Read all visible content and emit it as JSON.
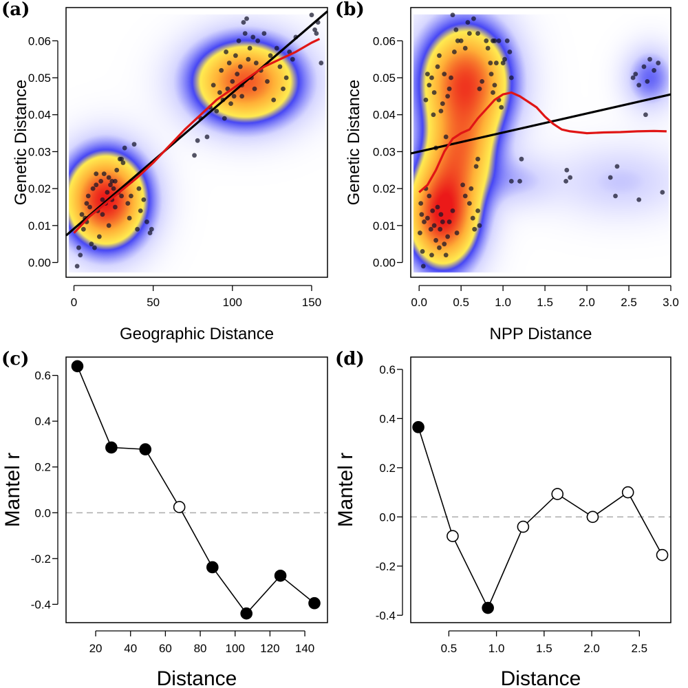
{
  "chart_data": [
    {
      "panel": "(a)",
      "type": "scatter",
      "xlabel": "Geographic Distance",
      "ylabel": "Genetic Distance",
      "xlim": [
        -5,
        160
      ],
      "ylim": [
        -0.004,
        0.069
      ],
      "xticks": [
        0,
        50,
        100,
        150
      ],
      "yticks": [
        0.0,
        0.01,
        0.02,
        0.03,
        0.04,
        0.05,
        0.06
      ],
      "yticklabels": [
        "0.00",
        "0.01",
        "0.02",
        "0.03",
        "0.04",
        "0.05",
        "0.06"
      ],
      "xticklabels": [
        "0",
        "50",
        "100",
        "150"
      ],
      "density_background": true,
      "density_clusters": [
        {
          "x": 20,
          "y": 0.017,
          "sx": 18,
          "sy": 0.009,
          "w": 1.0
        },
        {
          "x": 108,
          "y": 0.049,
          "sx": 24,
          "sy": 0.008,
          "w": 0.85
        }
      ],
      "points": [
        [
          2,
          -0.001
        ],
        [
          3,
          0.004
        ],
        [
          4,
          0.002
        ],
        [
          5,
          0.013
        ],
        [
          6,
          0.009
        ],
        [
          7,
          0.012
        ],
        [
          8,
          0.016
        ],
        [
          9,
          0.018
        ],
        [
          10,
          0.015
        ],
        [
          11,
          0.005
        ],
        [
          12,
          0.02
        ],
        [
          13,
          0.004
        ],
        [
          14,
          0.021
        ],
        [
          15,
          0.014
        ],
        [
          16,
          0.007
        ],
        [
          17,
          0.022
        ],
        [
          18,
          0.017
        ],
        [
          19,
          0.024
        ],
        [
          20,
          0.016
        ],
        [
          21,
          0.019
        ],
        [
          22,
          0.023
        ],
        [
          23,
          0.021
        ],
        [
          24,
          0.017
        ],
        [
          25,
          0.02
        ],
        [
          26,
          0.022
        ],
        [
          27,
          0.025
        ],
        [
          28,
          0.019
        ],
        [
          29,
          0.028
        ],
        [
          30,
          0.018
        ],
        [
          31,
          0.027
        ],
        [
          32,
          0.031
        ],
        [
          34,
          0.016
        ],
        [
          35,
          0.012
        ],
        [
          36,
          0.022
        ],
        [
          38,
          0.032
        ],
        [
          40,
          0.009
        ],
        [
          41,
          0.02
        ],
        [
          42,
          0.014
        ],
        [
          44,
          0.017
        ],
        [
          46,
          0.011
        ],
        [
          48,
          0.008
        ],
        [
          49,
          0.009
        ],
        [
          18,
          0.013
        ],
        [
          22,
          0.01
        ],
        [
          26,
          0.015
        ],
        [
          30,
          0.028
        ],
        [
          14,
          0.024
        ],
        [
          8,
          0.011
        ],
        [
          36,
          0.018
        ],
        [
          24,
          0.022
        ],
        [
          76,
          0.029
        ],
        [
          78,
          0.033
        ],
        [
          80,
          0.039
        ],
        [
          84,
          0.034
        ],
        [
          86,
          0.042
        ],
        [
          88,
          0.048
        ],
        [
          90,
          0.041
        ],
        [
          92,
          0.046
        ],
        [
          93,
          0.052
        ],
        [
          94,
          0.044
        ],
        [
          95,
          0.039
        ],
        [
          96,
          0.057
        ],
        [
          97,
          0.047
        ],
        [
          98,
          0.054
        ],
        [
          99,
          0.043
        ],
        [
          100,
          0.049
        ],
        [
          101,
          0.045
        ],
        [
          102,
          0.056
        ],
        [
          103,
          0.051
        ],
        [
          104,
          0.06
        ],
        [
          105,
          0.053
        ],
        [
          106,
          0.048
        ],
        [
          107,
          0.065
        ],
        [
          108,
          0.062
        ],
        [
          109,
          0.066
        ],
        [
          110,
          0.055
        ],
        [
          111,
          0.058
        ],
        [
          112,
          0.05
        ],
        [
          113,
          0.061
        ],
        [
          114,
          0.047
        ],
        [
          115,
          0.054
        ],
        [
          116,
          0.06
        ],
        [
          118,
          0.052
        ],
        [
          120,
          0.062
        ],
        [
          122,
          0.049
        ],
        [
          124,
          0.056
        ],
        [
          126,
          0.044
        ],
        [
          128,
          0.058
        ],
        [
          130,
          0.053
        ],
        [
          132,
          0.047
        ],
        [
          134,
          0.05
        ],
        [
          136,
          0.057
        ],
        [
          138,
          0.055
        ],
        [
          140,
          0.061
        ],
        [
          150,
          0.067
        ],
        [
          152,
          0.063
        ],
        [
          153,
          0.062
        ],
        [
          154,
          0.065
        ],
        [
          156,
          0.054
        ],
        [
          106,
          0.045
        ]
      ],
      "regression_line": {
        "x": [
          -5,
          160
        ],
        "y": [
          0.0073,
          0.068
        ],
        "color": "#000000"
      },
      "loess_curve": {
        "x": [
          0,
          10,
          20,
          30,
          40,
          50,
          60,
          70,
          80,
          90,
          100,
          110,
          120,
          130,
          140,
          150,
          155
        ],
        "y": [
          0.008,
          0.0125,
          0.016,
          0.0195,
          0.023,
          0.027,
          0.0315,
          0.036,
          0.04,
          0.044,
          0.047,
          0.05,
          0.053,
          0.055,
          0.057,
          0.0595,
          0.0605
        ],
        "color": "#e01515"
      }
    },
    {
      "panel": "(b)",
      "type": "scatter",
      "xlabel": "NPP Distance",
      "ylabel": "Genetic Distance",
      "xlim": [
        -0.1,
        3.0
      ],
      "ylim": [
        -0.004,
        0.069
      ],
      "xticks": [
        0.0,
        0.5,
        1.0,
        1.5,
        2.0,
        2.5,
        3.0
      ],
      "xticklabels": [
        "0.0",
        "0.5",
        "1.0",
        "1.5",
        "2.0",
        "2.5",
        "3.0"
      ],
      "yticks": [
        0.0,
        0.01,
        0.02,
        0.03,
        0.04,
        0.05,
        0.06
      ],
      "yticklabels": [
        "0.00",
        "0.01",
        "0.02",
        "0.03",
        "0.04",
        "0.05",
        "0.06"
      ],
      "density_background": true,
      "density_clusters": [
        {
          "x": 0.28,
          "y": 0.013,
          "sx": 0.3,
          "sy": 0.01,
          "w": 1.0
        },
        {
          "x": 0.55,
          "y": 0.049,
          "sx": 0.38,
          "sy": 0.011,
          "w": 0.9
        },
        {
          "x": 0.5,
          "y": 0.03,
          "sx": 0.28,
          "sy": 0.008,
          "w": 0.45
        },
        {
          "x": 2.75,
          "y": 0.05,
          "sx": 0.22,
          "sy": 0.006,
          "w": 0.28
        },
        {
          "x": 2.4,
          "y": 0.022,
          "sx": 0.55,
          "sy": 0.007,
          "w": 0.16
        },
        {
          "x": 1.2,
          "y": 0.022,
          "sx": 0.3,
          "sy": 0.005,
          "w": 0.14
        }
      ],
      "points": [
        [
          0.01,
          0.008
        ],
        [
          0.02,
          0.016
        ],
        [
          0.03,
          0.013
        ],
        [
          0.04,
          0.003
        ],
        [
          0.05,
          -0.001
        ],
        [
          0.06,
          0.011
        ],
        [
          0.08,
          0.02
        ],
        [
          0.1,
          0.012
        ],
        [
          0.12,
          0.018
        ],
        [
          0.14,
          0.009
        ],
        [
          0.15,
          0.002
        ],
        [
          0.16,
          0.014
        ],
        [
          0.18,
          0.01
        ],
        [
          0.2,
          0.006
        ],
        [
          0.22,
          0.015
        ],
        [
          0.24,
          0.004
        ],
        [
          0.25,
          0.009
        ],
        [
          0.26,
          0.013
        ],
        [
          0.28,
          0.011
        ],
        [
          0.3,
          0.005
        ],
        [
          0.32,
          0.002
        ],
        [
          0.34,
          0.007
        ],
        [
          0.36,
          0.011
        ],
        [
          0.4,
          0.014
        ],
        [
          0.45,
          0.008
        ],
        [
          0.52,
          0.021
        ],
        [
          0.55,
          0.018
        ],
        [
          0.6,
          0.016
        ],
        [
          0.62,
          0.02
        ],
        [
          0.64,
          0.012
        ],
        [
          0.66,
          0.009
        ],
        [
          0.7,
          0.014
        ],
        [
          0.72,
          0.01
        ],
        [
          0.68,
          0.026
        ],
        [
          0.7,
          0.028
        ],
        [
          0.08,
          0.044
        ],
        [
          0.1,
          0.051
        ],
        [
          0.12,
          0.048
        ],
        [
          0.15,
          0.05
        ],
        [
          0.17,
          0.04
        ],
        [
          0.18,
          0.046
        ],
        [
          0.2,
          0.031
        ],
        [
          0.22,
          0.053
        ],
        [
          0.24,
          0.056
        ],
        [
          0.26,
          0.041
        ],
        [
          0.28,
          0.043
        ],
        [
          0.3,
          0.051
        ],
        [
          0.32,
          0.034
        ],
        [
          0.34,
          0.045
        ],
        [
          0.36,
          0.047
        ],
        [
          0.38,
          0.05
        ],
        [
          0.4,
          0.067
        ],
        [
          0.42,
          0.057
        ],
        [
          0.44,
          0.063
        ],
        [
          0.46,
          0.06
        ],
        [
          0.5,
          0.06
        ],
        [
          0.55,
          0.058
        ],
        [
          0.58,
          0.065
        ],
        [
          0.6,
          0.062
        ],
        [
          0.65,
          0.066
        ],
        [
          0.7,
          0.062
        ],
        [
          0.72,
          0.047
        ],
        [
          0.75,
          0.049
        ],
        [
          0.8,
          0.06
        ],
        [
          0.82,
          0.058
        ],
        [
          0.85,
          0.054
        ],
        [
          0.88,
          0.06
        ],
        [
          0.9,
          0.06
        ],
        [
          0.92,
          0.054
        ],
        [
          0.95,
          0.06
        ],
        [
          1.0,
          0.054
        ],
        [
          1.02,
          0.055
        ],
        [
          1.05,
          0.06
        ],
        [
          1.08,
          0.057
        ],
        [
          0.86,
          0.051
        ],
        [
          0.88,
          0.046
        ],
        [
          0.9,
          0.048
        ],
        [
          0.95,
          0.044
        ],
        [
          1.1,
          0.05
        ],
        [
          0.98,
          0.042
        ],
        [
          1.1,
          0.022
        ],
        [
          1.2,
          0.022
        ],
        [
          1.22,
          0.028
        ],
        [
          1.75,
          0.022
        ],
        [
          1.76,
          0.025
        ],
        [
          1.8,
          0.023
        ],
        [
          2.28,
          0.023
        ],
        [
          2.34,
          0.018
        ],
        [
          2.36,
          0.026
        ],
        [
          2.62,
          0.017
        ],
        [
          2.55,
          0.05
        ],
        [
          2.62,
          0.048
        ],
        [
          2.68,
          0.053
        ],
        [
          2.72,
          0.049
        ],
        [
          2.75,
          0.055
        ],
        [
          2.8,
          0.052
        ],
        [
          2.85,
          0.054
        ],
        [
          2.9,
          0.019
        ],
        [
          2.7,
          0.04
        ],
        [
          2.58,
          0.051
        ]
      ],
      "regression_line": {
        "x": [
          -0.1,
          3.0
        ],
        "y": [
          0.0295,
          0.0455
        ],
        "color": "#000000"
      },
      "loess_curve": {
        "x": [
          0.0,
          0.1,
          0.2,
          0.3,
          0.4,
          0.5,
          0.6,
          0.7,
          0.8,
          0.9,
          1.0,
          1.1,
          1.2,
          1.3,
          1.4,
          1.5,
          1.6,
          1.7,
          1.8,
          2.0,
          2.2,
          2.4,
          2.6,
          2.8,
          2.95
        ],
        "y": [
          0.019,
          0.021,
          0.025,
          0.03,
          0.0335,
          0.035,
          0.036,
          0.039,
          0.0415,
          0.044,
          0.0455,
          0.046,
          0.045,
          0.0435,
          0.042,
          0.0395,
          0.0375,
          0.036,
          0.0355,
          0.035,
          0.0352,
          0.0353,
          0.0355,
          0.0356,
          0.0355
        ],
        "color": "#e01515"
      }
    },
    {
      "panel": "(c)",
      "type": "line",
      "xlabel": "Distance",
      "ylabel": "Mantel r",
      "xlim": [
        3,
        153
      ],
      "ylim": [
        -0.48,
        0.68
      ],
      "xticks": [
        20,
        40,
        60,
        80,
        100,
        120,
        140
      ],
      "xticklabels": [
        "20",
        "40",
        "60",
        "80",
        "100",
        "120",
        "140"
      ],
      "yticks": [
        -0.4,
        -0.2,
        0.0,
        0.2,
        0.4,
        0.6
      ],
      "yticklabels": [
        "-0.4",
        "-0.2",
        "0.0",
        "0.2",
        "0.4",
        "0.6"
      ],
      "reference_line": 0,
      "points": [
        {
          "x": 9.5,
          "y": 0.64,
          "filled": true
        },
        {
          "x": 29,
          "y": 0.285,
          "filled": true
        },
        {
          "x": 48.5,
          "y": 0.277,
          "filled": true
        },
        {
          "x": 68,
          "y": 0.025,
          "filled": false
        },
        {
          "x": 87,
          "y": -0.238,
          "filled": true
        },
        {
          "x": 106.5,
          "y": -0.44,
          "filled": true
        },
        {
          "x": 126,
          "y": -0.275,
          "filled": true
        },
        {
          "x": 145.5,
          "y": -0.395,
          "filled": true
        }
      ]
    },
    {
      "panel": "(d)",
      "type": "line",
      "xlabel": "Distance",
      "ylabel": "Mantel r",
      "xlim": [
        0.1,
        2.83
      ],
      "ylim": [
        -0.43,
        0.65
      ],
      "xticks": [
        0.5,
        1.0,
        1.5,
        2.0,
        2.5
      ],
      "xticklabels": [
        "0.5",
        "1.0",
        "1.5",
        "2.0",
        "2.5"
      ],
      "yticks": [
        -0.4,
        -0.2,
        0.0,
        0.2,
        0.4,
        0.6
      ],
      "yticklabels": [
        "-0.4",
        "-0.2",
        "0.0",
        "0.2",
        "0.4",
        "0.6"
      ],
      "reference_line": 0,
      "points": [
        {
          "x": 0.18,
          "y": 0.365,
          "filled": true
        },
        {
          "x": 0.54,
          "y": -0.078,
          "filled": false
        },
        {
          "x": 0.91,
          "y": -0.37,
          "filled": true
        },
        {
          "x": 1.28,
          "y": -0.04,
          "filled": false
        },
        {
          "x": 1.64,
          "y": 0.093,
          "filled": false
        },
        {
          "x": 2.01,
          "y": 0.0,
          "filled": false
        },
        {
          "x": 2.38,
          "y": 0.1,
          "filled": false
        },
        {
          "x": 2.74,
          "y": -0.155,
          "filled": false
        }
      ]
    }
  ]
}
